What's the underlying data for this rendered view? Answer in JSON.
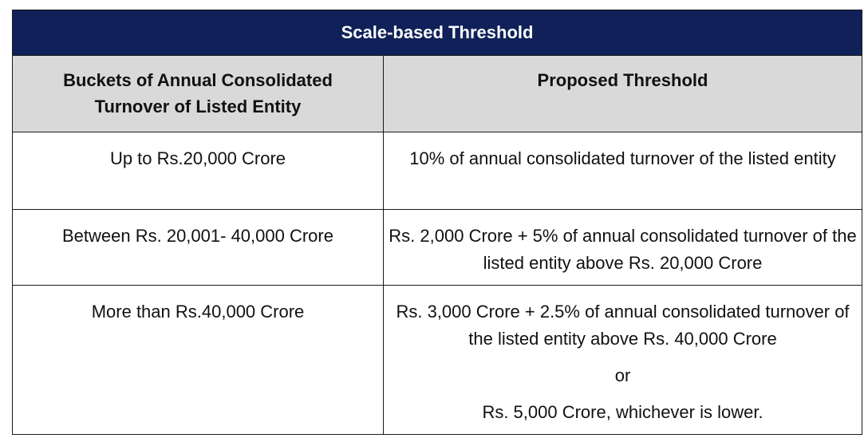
{
  "table": {
    "title": "Scale-based Threshold",
    "headers": [
      "Buckets of Annual Consolidated Turnover of Listed Entity",
      "Proposed Threshold"
    ],
    "rows": [
      {
        "bucket": "Up to Rs.20,000 Crore",
        "threshold": "10% of annual consolidated turnover of the listed entity"
      },
      {
        "bucket": "Between Rs. 20,001- 40,000 Crore",
        "threshold": "Rs. 2,000 Crore + 5% of annual consolidated turnover of the listed entity above Rs. 20,000 Crore"
      },
      {
        "bucket": "More than Rs.40,000 Crore",
        "threshold": "Rs. 3,000 Crore + 2.5% of annual consolidated turnover of the listed entity above Rs. 40,000 Crore",
        "threshold_or": "or",
        "threshold_alt": "Rs. 5,000 Crore, whichever is lower."
      }
    ]
  },
  "colors": {
    "title_bg": "#0f2158",
    "header_bg": "#d9d9d9"
  }
}
